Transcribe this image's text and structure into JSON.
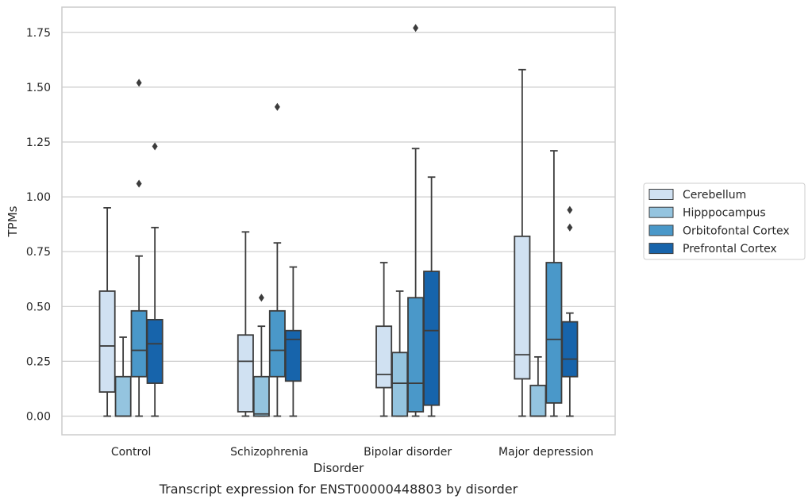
{
  "chart_data": {
    "type": "boxplot",
    "caption": "Transcript expression for ENST00000448803 by disorder",
    "xlabel": "Disorder",
    "ylabel": "TPMs",
    "ylim": [
      -0.085,
      1.865
    ],
    "yticks": [
      0.0,
      0.25,
      0.5,
      0.75,
      1.0,
      1.25,
      1.5,
      1.75
    ],
    "ytick_labels": [
      "0.00",
      "0.25",
      "0.50",
      "0.75",
      "1.00",
      "1.25",
      "1.50",
      "1.75"
    ],
    "grid": "horizontal",
    "legend_position": "right",
    "categories": [
      "Control",
      "Schizophrenia",
      "Bipolar disorder",
      "Major depression"
    ],
    "series": [
      {
        "name": "Cerebellum",
        "color": "#d0e1f2",
        "boxes": [
          {
            "whisker_low": 0.0,
            "q1": 0.11,
            "median": 0.32,
            "q3": 0.57,
            "whisker_high": 0.95,
            "outliers": []
          },
          {
            "whisker_low": 0.0,
            "q1": 0.02,
            "median": 0.25,
            "q3": 0.37,
            "whisker_high": 0.84,
            "outliers": []
          },
          {
            "whisker_low": 0.0,
            "q1": 0.13,
            "median": 0.19,
            "q3": 0.41,
            "whisker_high": 0.7,
            "outliers": []
          },
          {
            "whisker_low": 0.0,
            "q1": 0.17,
            "median": 0.28,
            "q3": 0.82,
            "whisker_high": 1.58,
            "outliers": []
          }
        ]
      },
      {
        "name": "Hipppocampus",
        "color": "#94c4df",
        "boxes": [
          {
            "whisker_low": 0.0,
            "q1": 0.0,
            "median": 0.0,
            "q3": 0.18,
            "whisker_high": 0.36,
            "outliers": []
          },
          {
            "whisker_low": 0.0,
            "q1": 0.0,
            "median": 0.01,
            "q3": 0.18,
            "whisker_high": 0.41,
            "outliers": [
              0.54
            ]
          },
          {
            "whisker_low": 0.0,
            "q1": 0.0,
            "median": 0.15,
            "q3": 0.29,
            "whisker_high": 0.57,
            "outliers": []
          },
          {
            "whisker_low": 0.0,
            "q1": 0.0,
            "median": 0.0,
            "q3": 0.14,
            "whisker_high": 0.27,
            "outliers": []
          }
        ]
      },
      {
        "name": "Orbitofontal Cortex",
        "color": "#4a98c9",
        "boxes": [
          {
            "whisker_low": 0.0,
            "q1": 0.18,
            "median": 0.3,
            "q3": 0.48,
            "whisker_high": 0.73,
            "outliers": [
              1.06,
              1.52
            ]
          },
          {
            "whisker_low": 0.0,
            "q1": 0.18,
            "median": 0.3,
            "q3": 0.48,
            "whisker_high": 0.79,
            "outliers": [
              1.41
            ]
          },
          {
            "whisker_low": 0.0,
            "q1": 0.02,
            "median": 0.15,
            "q3": 0.54,
            "whisker_high": 1.22,
            "outliers": [
              1.77
            ]
          },
          {
            "whisker_low": 0.0,
            "q1": 0.06,
            "median": 0.35,
            "q3": 0.7,
            "whisker_high": 1.21,
            "outliers": []
          }
        ]
      },
      {
        "name": "Prefrontal Cortex",
        "color": "#1764ab",
        "boxes": [
          {
            "whisker_low": 0.0,
            "q1": 0.15,
            "median": 0.33,
            "q3": 0.44,
            "whisker_high": 0.86,
            "outliers": [
              1.23
            ]
          },
          {
            "whisker_low": 0.0,
            "q1": 0.16,
            "median": 0.35,
            "q3": 0.39,
            "whisker_high": 0.68,
            "outliers": []
          },
          {
            "whisker_low": 0.0,
            "q1": 0.05,
            "median": 0.39,
            "q3": 0.66,
            "whisker_high": 1.09,
            "outliers": []
          },
          {
            "whisker_low": 0.0,
            "q1": 0.18,
            "median": 0.26,
            "q3": 0.43,
            "whisker_high": 0.47,
            "outliers": [
              0.86,
              0.94
            ]
          }
        ]
      }
    ],
    "style": {
      "line_color": "#3c3c3c",
      "grid_color": "#cccccc",
      "frame_color": "#cccccc"
    }
  }
}
